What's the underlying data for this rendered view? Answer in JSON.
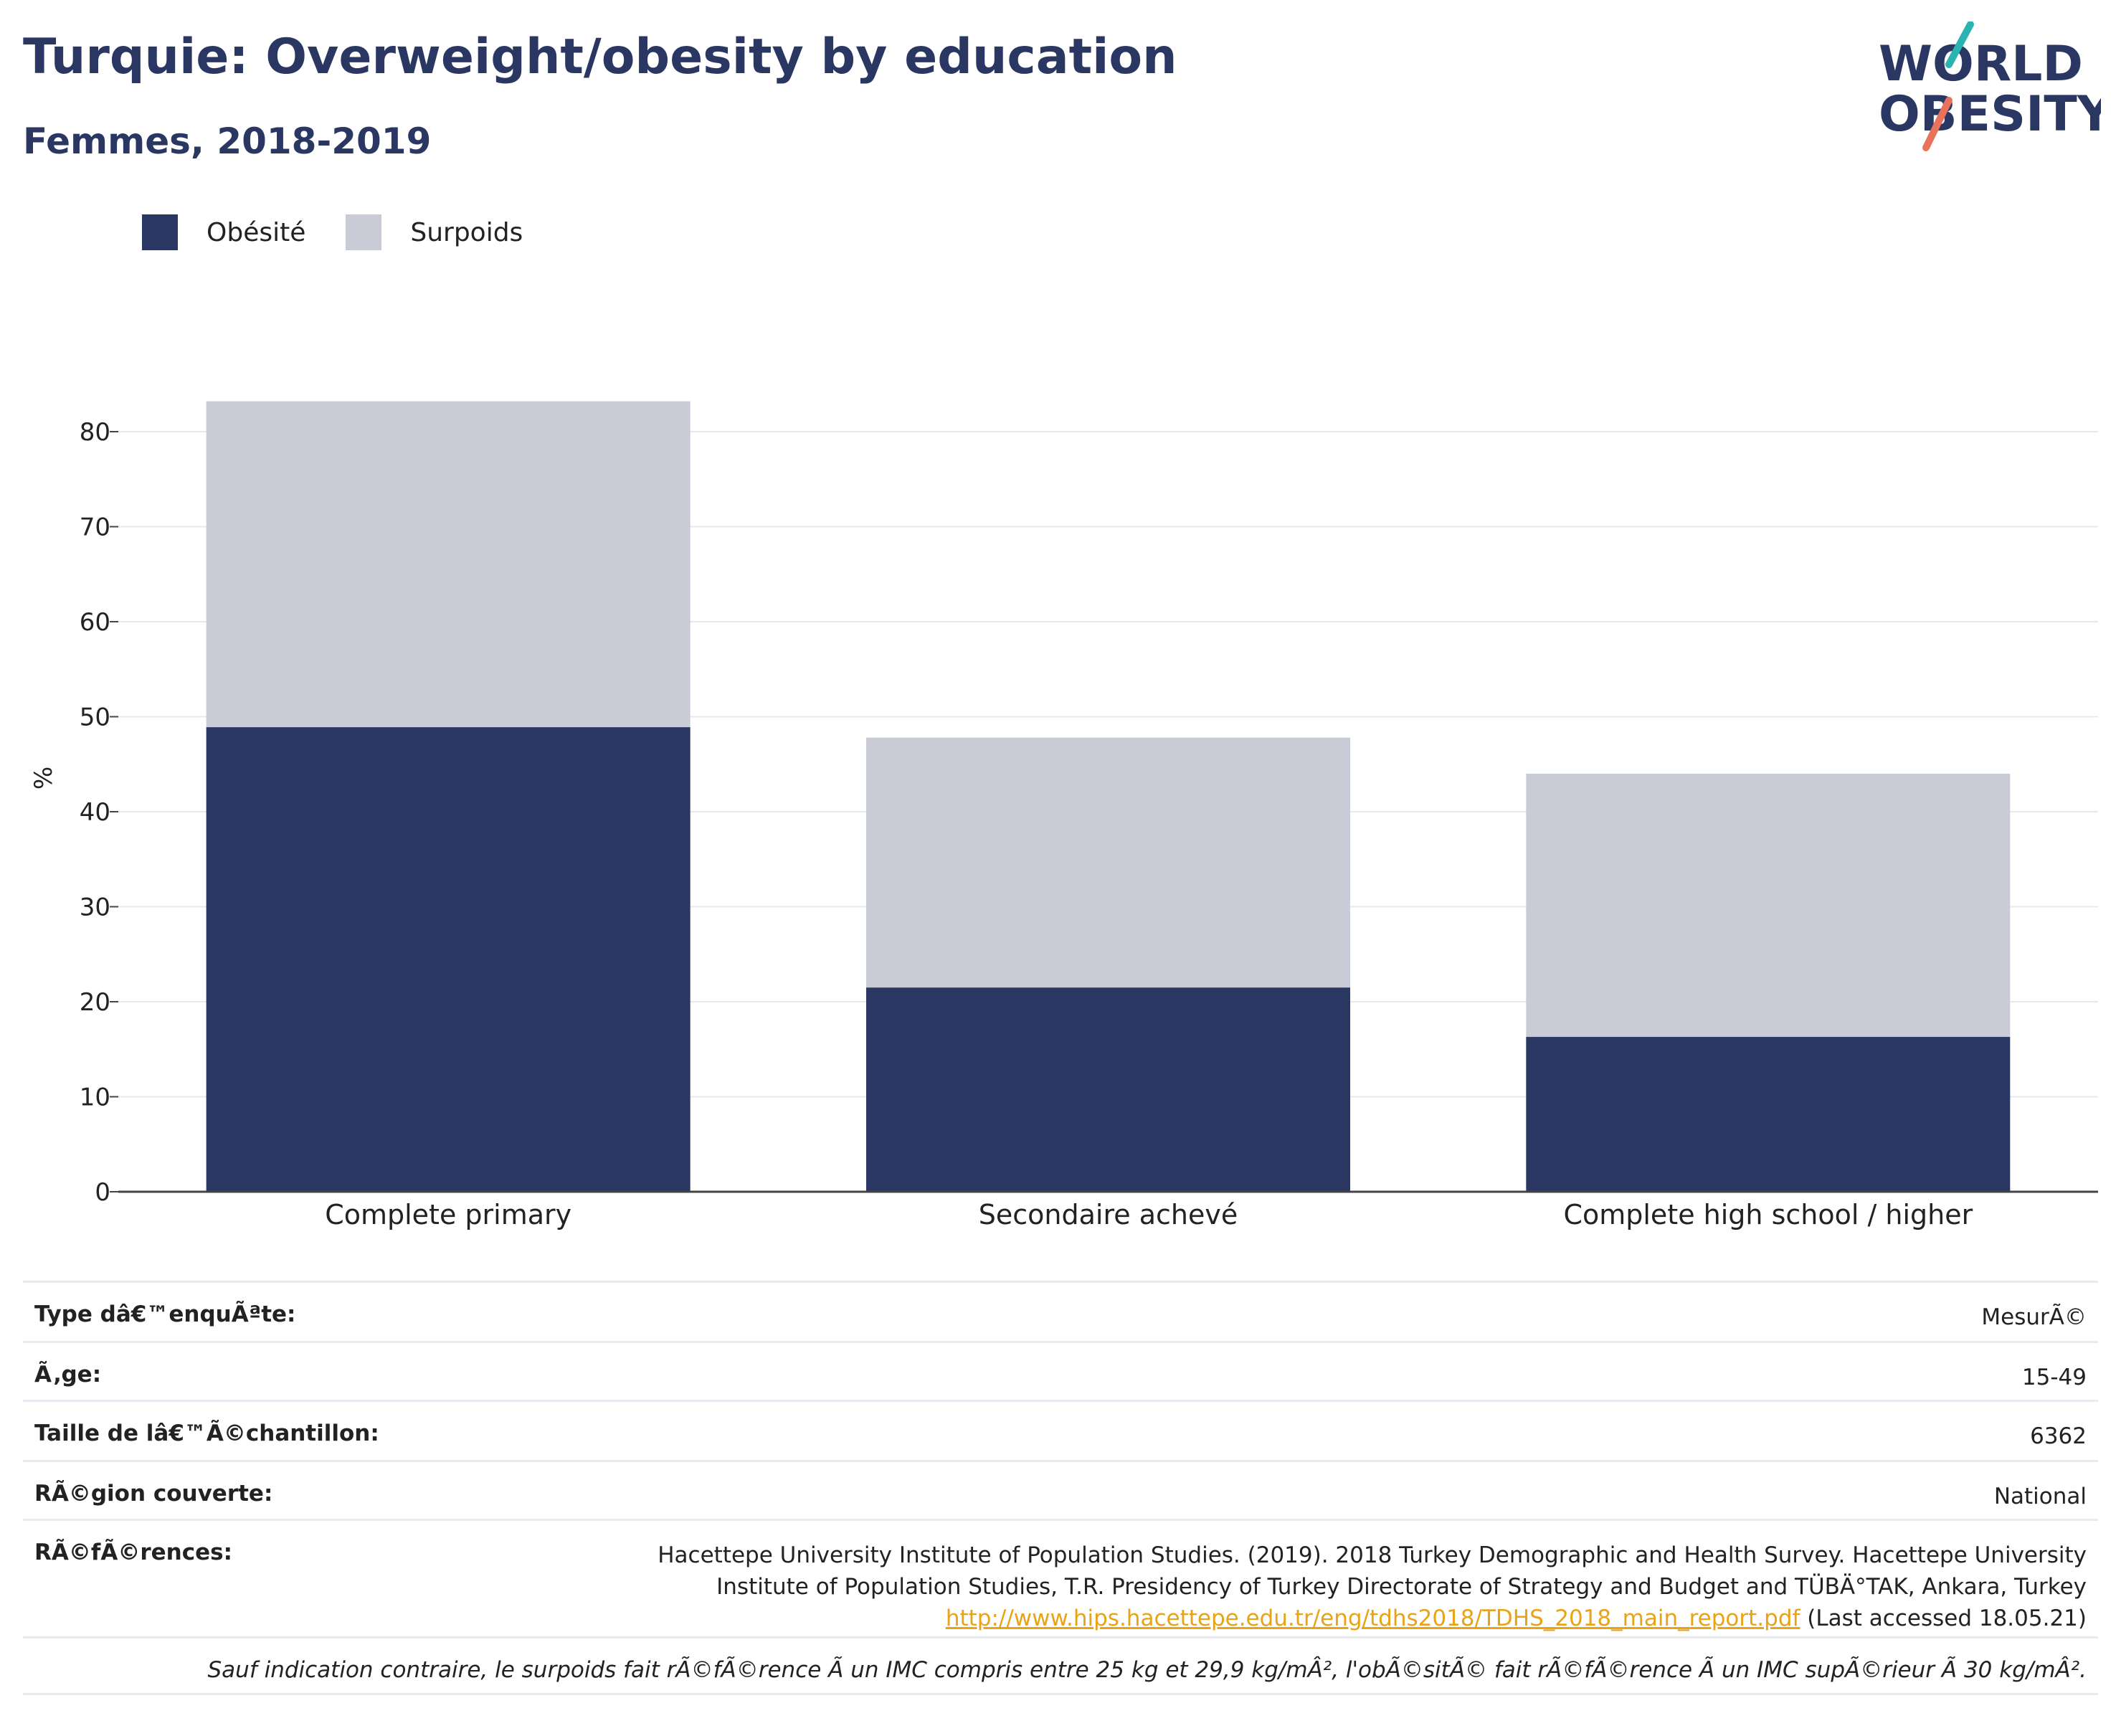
{
  "header": {
    "title": "Turquie: Overweight/obesity by education",
    "subtitle": "Femmes, 2018-2019"
  },
  "logo": {
    "line1": "WORLD",
    "line2": "OBESITY"
  },
  "colors": {
    "obesity": "#2a3763",
    "overweight": "#c9ccd7",
    "link": "#e8a317",
    "grid": "#e6e8ee"
  },
  "chart_data": {
    "type": "bar",
    "stacked": true,
    "categories": [
      "Complete primary",
      "Secondaire achevé",
      "Complete high school / higher"
    ],
    "series": [
      {
        "name": "Obésité",
        "values": [
          48.9,
          21.5,
          16.3
        ]
      },
      {
        "name": "Surpoids",
        "values": [
          34.3,
          26.3,
          27.7
        ]
      }
    ],
    "ylabel": "%",
    "xlabel": "",
    "ylim": [
      0,
      85
    ],
    "yticks": [
      0,
      10,
      20,
      30,
      40,
      50,
      60,
      70,
      80
    ],
    "grid": true,
    "legend": "top-left"
  },
  "meta": {
    "survey_type_label": "Type dâ€™enquÃªte:",
    "survey_type_value": "MesurÃ©",
    "age_label": "Ã‚ge:",
    "age_value": "15-49",
    "sample_label": "Taille de lâ€™Ã©chantillon:",
    "sample_value": "6362",
    "region_label": "RÃ©gion couverte:",
    "region_value": "National",
    "refs_label": "RÃ©fÃ©rences:",
    "refs_line1": "Hacettepe University Institute of Population Studies. (2019). 2018 Turkey Demographic and Health Survey. Hacettepe University",
    "refs_line2": "Institute of Population Studies, T.R. Presidency of Turkey Directorate of Strategy and Budget and TÜBÄ°TAK, Ankara, Turkey",
    "refs_link": "http://www.hips.hacettepe.edu.tr/eng/tdhs2018/TDHS_2018_main_report.pdf",
    "refs_accessed": " (Last accessed 18.05.21)",
    "note": "Sauf indication contraire, le surpoids fait rÃ©fÃ©rence Ã  un IMC compris entre 25 kg et 29,9 kg/mÂ², l'obÃ©sitÃ© fait rÃ©fÃ©rence Ã  un IMC supÃ©rieur Ã  30 kg/mÂ²."
  }
}
